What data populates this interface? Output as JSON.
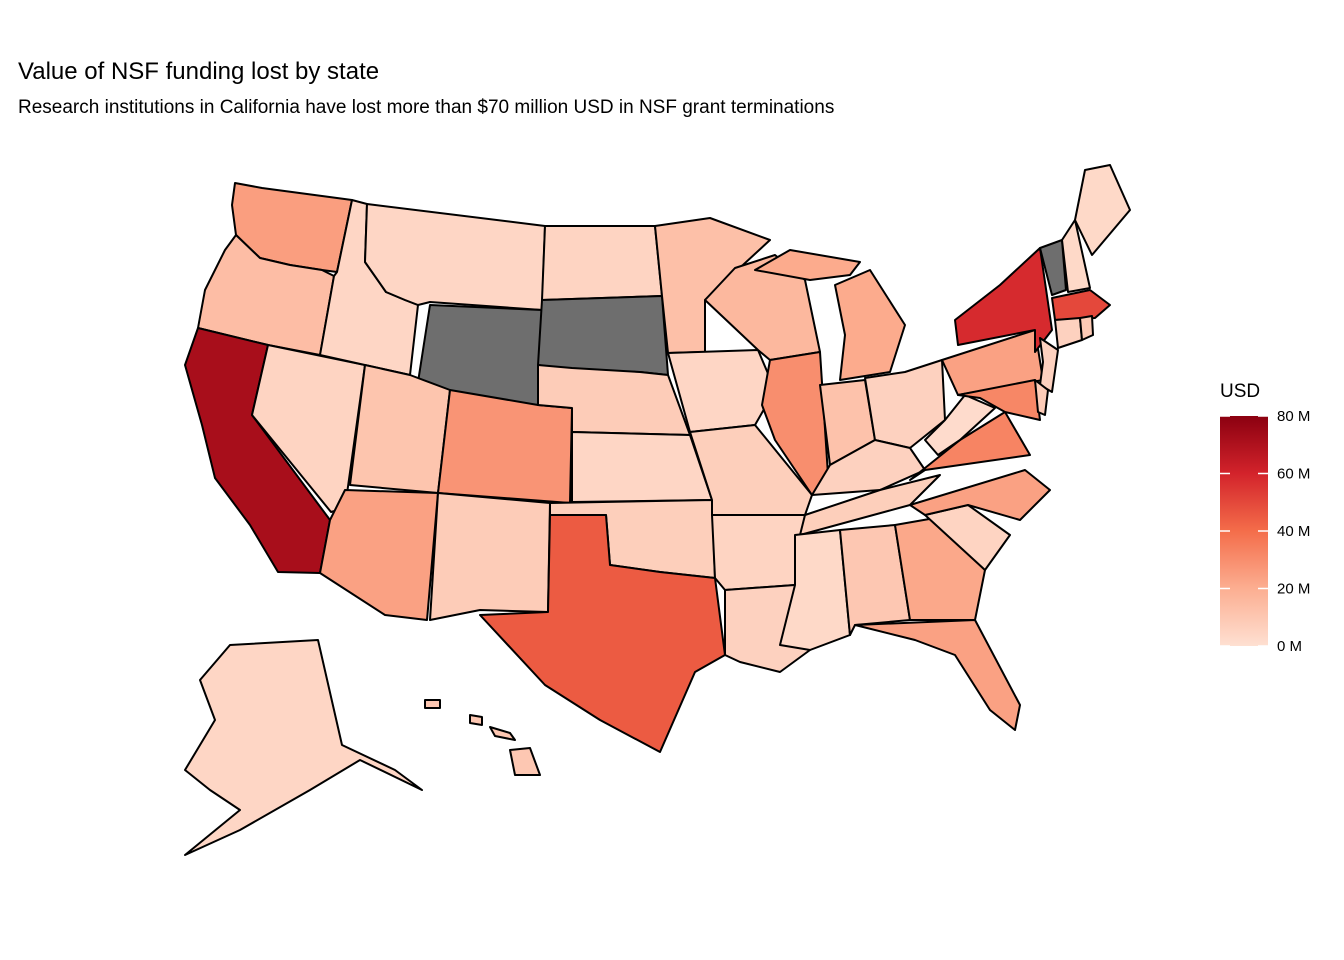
{
  "chart": {
    "title": "Value of NSF funding lost by state",
    "subtitle": "Research institutions in California have lost more than $70 million USD in NSF grant terminations"
  },
  "legend": {
    "title": "USD",
    "min": 0,
    "max": 80,
    "ticks": [
      {
        "value": 0,
        "label": "0 M"
      },
      {
        "value": 20,
        "label": "20 M"
      },
      {
        "value": 40,
        "label": "40 M"
      },
      {
        "value": 60,
        "label": "60 M"
      },
      {
        "value": 80,
        "label": "80 M"
      }
    ],
    "color_low": "#FEE0D2",
    "color_high": "#8B0010",
    "na_color": "#6E6E6E"
  },
  "chart_data": {
    "type": "choropleth",
    "unit": "Million USD",
    "states": [
      {
        "name": "California",
        "value": 72
      },
      {
        "name": "New York",
        "value": 58
      },
      {
        "name": "Massachusetts",
        "value": 50
      },
      {
        "name": "Texas",
        "value": 45
      },
      {
        "name": "Virginia",
        "value": 33
      },
      {
        "name": "Illinois",
        "value": 30
      },
      {
        "name": "Maryland",
        "value": 32
      },
      {
        "name": "Colorado",
        "value": 28
      },
      {
        "name": "Washington",
        "value": 25
      },
      {
        "name": "Arizona",
        "value": 24
      },
      {
        "name": "North Carolina",
        "value": 24
      },
      {
        "name": "Pennsylvania",
        "value": 24
      },
      {
        "name": "Georgia",
        "value": 22
      },
      {
        "name": "Florida",
        "value": 24
      },
      {
        "name": "Michigan",
        "value": 21
      },
      {
        "name": "Wisconsin",
        "value": 16
      },
      {
        "name": "Oregon",
        "value": 14
      },
      {
        "name": "Minnesota",
        "value": 13
      },
      {
        "name": "Indiana",
        "value": 12
      },
      {
        "name": "Utah",
        "value": 11
      },
      {
        "name": "Alabama",
        "value": 10
      },
      {
        "name": "New Mexico",
        "value": 8
      },
      {
        "name": "Nebraska",
        "value": 8
      },
      {
        "name": "Missouri",
        "value": 7
      },
      {
        "name": "Oklahoma",
        "value": 7
      },
      {
        "name": "Kentucky",
        "value": 6
      },
      {
        "name": "Tennessee",
        "value": 7
      },
      {
        "name": "Louisiana",
        "value": 6
      },
      {
        "name": "Hawaii",
        "value": 10
      },
      {
        "name": "Rhode Island",
        "value": 9
      },
      {
        "name": "Delaware",
        "value": 8
      },
      {
        "name": "Connecticut",
        "value": 6
      },
      {
        "name": "New Jersey",
        "value": 6
      },
      {
        "name": "Ohio",
        "value": 6
      },
      {
        "name": "South Carolina",
        "value": 5
      },
      {
        "name": "Arkansas",
        "value": 5
      },
      {
        "name": "Kansas",
        "value": 4
      },
      {
        "name": "Iowa",
        "value": 4
      },
      {
        "name": "Mississippi",
        "value": 3
      },
      {
        "name": "North Dakota",
        "value": 5
      },
      {
        "name": "Montana",
        "value": 4
      },
      {
        "name": "Idaho",
        "value": 4
      },
      {
        "name": "Nevada",
        "value": 5
      },
      {
        "name": "New Hampshire",
        "value": 3
      },
      {
        "name": "Maine",
        "value": 3
      },
      {
        "name": "Alaska",
        "value": 4
      },
      {
        "name": "West Virginia",
        "value": 2
      },
      {
        "name": "Wyoming",
        "value": null
      },
      {
        "name": "South Dakota",
        "value": null
      },
      {
        "name": "Vermont",
        "value": null
      }
    ]
  }
}
